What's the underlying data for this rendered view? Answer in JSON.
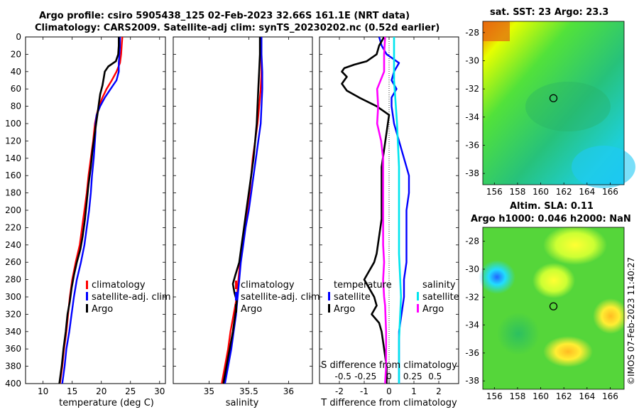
{
  "header": {
    "title_line1": "Argo profile: csiro 5905438_125 02-Feb-2023 32.66S 161.1E (NRT data)",
    "title_line2": "Climatology: CARS2009. Satellite-adj clim: synTS_20230202.nc (0.52d earlier)"
  },
  "maps": {
    "sst_title": "sat. SST: 23 Argo: 23.3",
    "sla_title_line1": "Altim. SLA: 0.11",
    "sla_title_line2": "Argo h1000: 0.046 h2000: NaN",
    "lon_ticks": [
      "156",
      "158",
      "160",
      "162",
      "164",
      "166"
    ],
    "lat_ticks": [
      "-28",
      "-30",
      "-32",
      "-34",
      "-36",
      "-38"
    ],
    "profile_location": {
      "lon": 161.1,
      "lat": -32.66
    }
  },
  "watermark": "©IMOS 07-Feb-2023 11:40:27",
  "colors": {
    "climatology": "#ff0000",
    "satellite": "#0000ff",
    "argo": "#000000",
    "s_satellite": "#00e5ee",
    "s_argo": "#ff00ff"
  },
  "chart_data": [
    {
      "type": "line",
      "xlabel": "temperature (deg C)",
      "ylabel": "",
      "xlim": [
        7,
        31
      ],
      "ylim": [
        400,
        0
      ],
      "xticks": [
        10,
        15,
        20,
        25,
        30
      ],
      "yticks": [
        0,
        20,
        40,
        60,
        80,
        100,
        120,
        140,
        160,
        180,
        200,
        220,
        240,
        260,
        280,
        300,
        320,
        340,
        360,
        380,
        400
      ],
      "legend": [
        "climatology",
        "satellite-adj. clim",
        "Argo"
      ],
      "series": [
        {
          "name": "climatology",
          "color": "red",
          "points": [
            [
              23.6,
              0
            ],
            [
              23.5,
              10
            ],
            [
              23.4,
              20
            ],
            [
              23.2,
              30
            ],
            [
              22.6,
              40
            ],
            [
              21.8,
              50
            ],
            [
              20.9,
              60
            ],
            [
              20.2,
              70
            ],
            [
              19.6,
              80
            ],
            [
              19.2,
              90
            ],
            [
              18.9,
              100
            ],
            [
              18.6,
              120
            ],
            [
              18.2,
              140
            ],
            [
              17.8,
              160
            ],
            [
              17.5,
              180
            ],
            [
              17.1,
              200
            ],
            [
              16.7,
              220
            ],
            [
              16.3,
              240
            ],
            [
              15.6,
              260
            ],
            [
              15.0,
              280
            ],
            [
              14.6,
              300
            ],
            [
              14.3,
              320
            ],
            [
              14.0,
              340
            ],
            [
              13.6,
              360
            ],
            [
              13.3,
              380
            ],
            [
              12.9,
              400
            ]
          ]
        },
        {
          "name": "satellite-adj. clim",
          "color": "blue",
          "points": [
            [
              23.2,
              0
            ],
            [
              23.2,
              10
            ],
            [
              23.1,
              20
            ],
            [
              23.0,
              30
            ],
            [
              23.0,
              40
            ],
            [
              22.6,
              50
            ],
            [
              21.6,
              60
            ],
            [
              20.6,
              70
            ],
            [
              19.8,
              80
            ],
            [
              19.2,
              90
            ],
            [
              19.0,
              100
            ],
            [
              19.0,
              110
            ],
            [
              18.9,
              120
            ],
            [
              18.7,
              140
            ],
            [
              18.4,
              160
            ],
            [
              18.2,
              180
            ],
            [
              17.9,
              200
            ],
            [
              17.5,
              220
            ],
            [
              17.1,
              240
            ],
            [
              16.5,
              260
            ],
            [
              15.8,
              280
            ],
            [
              15.3,
              300
            ],
            [
              14.9,
              320
            ],
            [
              14.5,
              340
            ],
            [
              14.0,
              360
            ],
            [
              13.7,
              380
            ],
            [
              13.3,
              400
            ]
          ]
        },
        {
          "name": "Argo",
          "color": "black",
          "points": [
            [
              23.0,
              0
            ],
            [
              23.0,
              10
            ],
            [
              22.9,
              20
            ],
            [
              22.5,
              28
            ],
            [
              21.2,
              34
            ],
            [
              20.6,
              40
            ],
            [
              20.4,
              48
            ],
            [
              20.2,
              56
            ],
            [
              19.8,
              66
            ],
            [
              19.6,
              76
            ],
            [
              19.4,
              86
            ],
            [
              19.2,
              96
            ],
            [
              18.9,
              110
            ],
            [
              18.5,
              130
            ],
            [
              18.2,
              150
            ],
            [
              17.8,
              170
            ],
            [
              17.5,
              190
            ],
            [
              17.2,
              210
            ],
            [
              16.8,
              230
            ],
            [
              16.4,
              245
            ],
            [
              15.8,
              260
            ],
            [
              15.3,
              275
            ],
            [
              14.9,
              290
            ],
            [
              14.6,
              305
            ],
            [
              14.2,
              320
            ],
            [
              13.9,
              340
            ],
            [
              13.5,
              360
            ],
            [
              13.2,
              380
            ],
            [
              12.8,
              400
            ]
          ]
        }
      ]
    },
    {
      "type": "line",
      "xlabel": "salinity",
      "ylabel": "",
      "xlim": [
        34.55,
        36.3
      ],
      "ylim": [
        400,
        0
      ],
      "xticks": [
        35,
        35.5,
        36
      ],
      "legend": [
        "climatology",
        "satellite-adj. clim",
        "Argo"
      ],
      "series": [
        {
          "name": "climatology",
          "color": "red",
          "points": [
            [
              35.66,
              0
            ],
            [
              35.66,
              20
            ],
            [
              35.66,
              40
            ],
            [
              35.65,
              60
            ],
            [
              35.63,
              80
            ],
            [
              35.61,
              100
            ],
            [
              35.58,
              120
            ],
            [
              35.55,
              140
            ],
            [
              35.53,
              160
            ],
            [
              35.51,
              180
            ],
            [
              35.48,
              200
            ],
            [
              35.45,
              220
            ],
            [
              35.42,
              240
            ],
            [
              35.39,
              260
            ],
            [
              35.37,
              280
            ],
            [
              35.35,
              300
            ],
            [
              35.31,
              320
            ],
            [
              35.27,
              340
            ],
            [
              35.24,
              360
            ],
            [
              35.2,
              380
            ],
            [
              35.16,
              400
            ]
          ]
        },
        {
          "name": "satellite-adj. clim",
          "color": "blue",
          "points": [
            [
              35.66,
              0
            ],
            [
              35.66,
              20
            ],
            [
              35.67,
              40
            ],
            [
              35.67,
              60
            ],
            [
              35.66,
              80
            ],
            [
              35.65,
              100
            ],
            [
              35.62,
              120
            ],
            [
              35.59,
              140
            ],
            [
              35.56,
              160
            ],
            [
              35.53,
              180
            ],
            [
              35.5,
              200
            ],
            [
              35.46,
              220
            ],
            [
              35.43,
              240
            ],
            [
              35.4,
              260
            ],
            [
              35.38,
              280
            ],
            [
              35.36,
              300
            ],
            [
              35.34,
              320
            ],
            [
              35.31,
              340
            ],
            [
              35.28,
              360
            ],
            [
              35.24,
              380
            ],
            [
              35.2,
              400
            ]
          ]
        },
        {
          "name": "Argo",
          "color": "black",
          "points": [
            [
              35.64,
              0
            ],
            [
              35.64,
              20
            ],
            [
              35.63,
              40
            ],
            [
              35.62,
              60
            ],
            [
              35.61,
              80
            ],
            [
              35.6,
              100
            ],
            [
              35.58,
              120
            ],
            [
              35.56,
              140
            ],
            [
              35.53,
              160
            ],
            [
              35.5,
              180
            ],
            [
              35.47,
              200
            ],
            [
              35.44,
              220
            ],
            [
              35.41,
              240
            ],
            [
              35.38,
              260
            ],
            [
              35.33,
              275
            ],
            [
              35.3,
              285
            ],
            [
              35.32,
              295
            ],
            [
              35.35,
              305
            ],
            [
              35.33,
              320
            ],
            [
              35.3,
              340
            ],
            [
              35.26,
              360
            ],
            [
              35.22,
              380
            ],
            [
              35.18,
              400
            ]
          ]
        }
      ]
    },
    {
      "type": "line",
      "xlabel": "T difference from climatology",
      "x2label": "S difference from climatology",
      "xlim": [
        -2.8,
        2.8
      ],
      "ylim": [
        400,
        0
      ],
      "xticks": [
        -2,
        -1,
        0,
        1,
        2
      ],
      "x2ticks": [
        "-0.5",
        "-0.25",
        "0",
        "0.25",
        "0.5"
      ],
      "legend_temperature_title": "temperature",
      "legend_salinity_title": "salinity",
      "legend": [
        "satellite",
        "Argo",
        "satellite",
        "Argo"
      ],
      "series": [
        {
          "name": "T satellite",
          "color": "blue",
          "points": [
            [
              -0.4,
              0
            ],
            [
              -0.3,
              10
            ],
            [
              -0.1,
              20
            ],
            [
              0.4,
              30
            ],
            [
              0.2,
              40
            ],
            [
              0.1,
              50
            ],
            [
              0.3,
              60
            ],
            [
              0.1,
              70
            ],
            [
              0.1,
              80
            ],
            [
              0.2,
              100
            ],
            [
              0.4,
              120
            ],
            [
              0.6,
              140
            ],
            [
              0.8,
              160
            ],
            [
              0.8,
              180
            ],
            [
              0.7,
              200
            ],
            [
              0.7,
              220
            ],
            [
              0.7,
              240
            ],
            [
              0.7,
              260
            ],
            [
              0.6,
              280
            ],
            [
              0.6,
              300
            ],
            [
              0.5,
              320
            ],
            [
              0.4,
              340
            ],
            [
              0.4,
              360
            ],
            [
              0.4,
              380
            ],
            [
              0.4,
              400
            ]
          ]
        },
        {
          "name": "T Argo",
          "color": "black",
          "points": [
            [
              -0.2,
              0
            ],
            [
              -0.4,
              10
            ],
            [
              -0.5,
              20
            ],
            [
              -0.9,
              28
            ],
            [
              -1.4,
              32
            ],
            [
              -1.8,
              36
            ],
            [
              -1.9,
              40
            ],
            [
              -1.7,
              46
            ],
            [
              -1.9,
              54
            ],
            [
              -1.7,
              62
            ],
            [
              -1.2,
              70
            ],
            [
              -0.5,
              80
            ],
            [
              0.0,
              90
            ],
            [
              -0.1,
              110
            ],
            [
              -0.2,
              130
            ],
            [
              -0.3,
              150
            ],
            [
              -0.3,
              170
            ],
            [
              -0.3,
              190
            ],
            [
              -0.3,
              210
            ],
            [
              -0.4,
              230
            ],
            [
              -0.5,
              250
            ],
            [
              -0.6,
              260
            ],
            [
              -0.8,
              270
            ],
            [
              -1.0,
              280
            ],
            [
              -0.8,
              290
            ],
            [
              -0.6,
              300
            ],
            [
              -0.5,
              310
            ],
            [
              -0.7,
              320
            ],
            [
              -0.4,
              330
            ],
            [
              -0.3,
              340
            ],
            [
              -0.2,
              360
            ],
            [
              -0.1,
              380
            ],
            [
              -0.1,
              400
            ]
          ]
        },
        {
          "name": "S satellite",
          "color": "cyan",
          "points": [
            [
              0.05,
              0
            ],
            [
              0.05,
              50
            ],
            [
              0.08,
              100
            ],
            [
              0.1,
              150
            ],
            [
              0.1,
              200
            ],
            [
              0.1,
              250
            ],
            [
              0.12,
              300
            ],
            [
              0.1,
              350
            ],
            [
              0.1,
              400
            ]
          ]
        },
        {
          "name": "S Argo",
          "color": "magenta",
          "points": [
            [
              -0.04,
              0
            ],
            [
              -0.05,
              20
            ],
            [
              -0.05,
              40
            ],
            [
              -0.12,
              60
            ],
            [
              -0.11,
              80
            ],
            [
              -0.12,
              100
            ],
            [
              -0.08,
              120
            ],
            [
              -0.06,
              140
            ],
            [
              -0.06,
              160
            ],
            [
              -0.06,
              180
            ],
            [
              -0.06,
              200
            ],
            [
              -0.06,
              220
            ],
            [
              -0.06,
              240
            ],
            [
              -0.05,
              260
            ],
            [
              -0.06,
              280
            ],
            [
              -0.05,
              300
            ],
            [
              -0.04,
              310
            ],
            [
              -0.03,
              340
            ],
            [
              -0.03,
              360
            ],
            [
              -0.03,
              380
            ],
            [
              -0.04,
              400
            ]
          ]
        }
      ]
    }
  ]
}
